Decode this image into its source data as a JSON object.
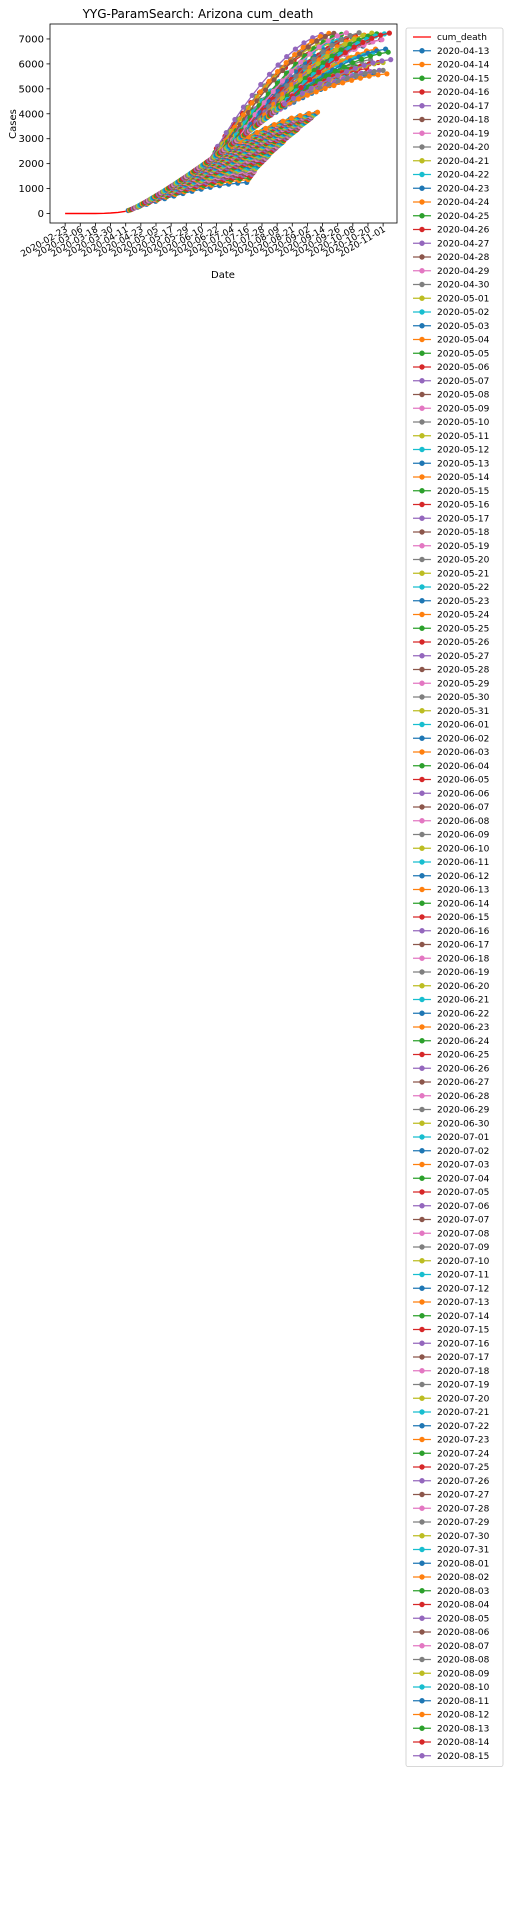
{
  "chart_data": {
    "type": "line",
    "title": "YYG-ParamSearch: Arizona cum_death",
    "xlabel": "Date",
    "ylabel": "Cases",
    "ylim": [
      -380,
      7600
    ],
    "yticks": [
      0,
      1000,
      2000,
      3000,
      4000,
      5000,
      6000,
      7000
    ],
    "xlim": [
      "2020-02-11",
      "2020-11-12"
    ],
    "xticks": [
      "2020-02-23",
      "2020-03-06",
      "2020-03-18",
      "2020-03-30",
      "2020-04-11",
      "2020-04-23",
      "2020-05-05",
      "2020-05-17",
      "2020-05-29",
      "2020-06-10",
      "2020-06-22",
      "2020-07-04",
      "2020-07-16",
      "2020-07-28",
      "2020-08-09",
      "2020-08-21",
      "2020-09-02",
      "2020-09-14",
      "2020-09-26",
      "2020-10-08",
      "2020-10-20",
      "2020-11-01"
    ],
    "grid": false,
    "legend_position": "outside-right",
    "colors": [
      "#1f77b4",
      "#ff7f0e",
      "#2ca02c",
      "#d62728",
      "#9467bd",
      "#8c564b",
      "#e377c2",
      "#7f7f7f",
      "#bcbd22",
      "#17becf"
    ],
    "truth_color": "#ff0000",
    "truth": {
      "name": "cum_death",
      "x": [
        "2020-02-23",
        "2020-03-06",
        "2020-03-18",
        "2020-03-25",
        "2020-03-30",
        "2020-04-05",
        "2020-04-11"
      ],
      "y": [
        0,
        0,
        2,
        10,
        20,
        45,
        90
      ]
    },
    "projection_start": "2020-04-13",
    "projection_end_first": "2020-07-16",
    "projection_end_last": "2020-11-07",
    "start_value_first": 120,
    "start_value_last": 4400,
    "end_value_first": 1250,
    "end_value_mid": 4100,
    "end_value_last": 7250,
    "end_value_min": 5600,
    "series_names": [
      "2020-04-13",
      "2020-04-14",
      "2020-04-15",
      "2020-04-16",
      "2020-04-17",
      "2020-04-18",
      "2020-04-19",
      "2020-04-20",
      "2020-04-21",
      "2020-04-22",
      "2020-04-23",
      "2020-04-24",
      "2020-04-25",
      "2020-04-26",
      "2020-04-27",
      "2020-04-28",
      "2020-04-29",
      "2020-04-30",
      "2020-05-01",
      "2020-05-02",
      "2020-05-03",
      "2020-05-04",
      "2020-05-05",
      "2020-05-06",
      "2020-05-07",
      "2020-05-08",
      "2020-05-09",
      "2020-05-10",
      "2020-05-11",
      "2020-05-12",
      "2020-05-13",
      "2020-05-14",
      "2020-05-15",
      "2020-05-16",
      "2020-05-17",
      "2020-05-18",
      "2020-05-19",
      "2020-05-20",
      "2020-05-21",
      "2020-05-22",
      "2020-05-23",
      "2020-05-24",
      "2020-05-25",
      "2020-05-26",
      "2020-05-27",
      "2020-05-28",
      "2020-05-29",
      "2020-05-30",
      "2020-05-31",
      "2020-06-01",
      "2020-06-02",
      "2020-06-03",
      "2020-06-04",
      "2020-06-05",
      "2020-06-06",
      "2020-06-07",
      "2020-06-08",
      "2020-06-09",
      "2020-06-10",
      "2020-06-11",
      "2020-06-12",
      "2020-06-13",
      "2020-06-14",
      "2020-06-15",
      "2020-06-16",
      "2020-06-17",
      "2020-06-18",
      "2020-06-19",
      "2020-06-20",
      "2020-06-21",
      "2020-06-22",
      "2020-06-23",
      "2020-06-24",
      "2020-06-25",
      "2020-06-26",
      "2020-06-27",
      "2020-06-28",
      "2020-06-29",
      "2020-06-30",
      "2020-07-01",
      "2020-07-02",
      "2020-07-03",
      "2020-07-04",
      "2020-07-05",
      "2020-07-06",
      "2020-07-07",
      "2020-07-08",
      "2020-07-09",
      "2020-07-10",
      "2020-07-11",
      "2020-07-12",
      "2020-07-13",
      "2020-07-14",
      "2020-07-15",
      "2020-07-16",
      "2020-07-17",
      "2020-07-18",
      "2020-07-19",
      "2020-07-20",
      "2020-07-21",
      "2020-07-22",
      "2020-07-23",
      "2020-07-24",
      "2020-07-25",
      "2020-07-26",
      "2020-07-27",
      "2020-07-28",
      "2020-07-29",
      "2020-07-30",
      "2020-07-31",
      "2020-08-01",
      "2020-08-02",
      "2020-08-03",
      "2020-08-04",
      "2020-08-05",
      "2020-08-06",
      "2020-08-07",
      "2020-08-08",
      "2020-08-09",
      "2020-08-10",
      "2020-08-11",
      "2020-08-12",
      "2020-08-13",
      "2020-08-14",
      "2020-08-15"
    ]
  }
}
